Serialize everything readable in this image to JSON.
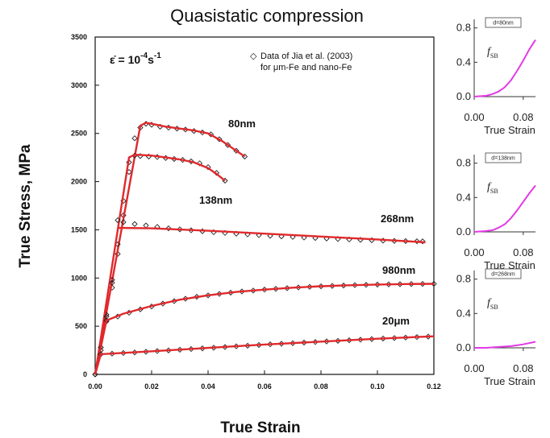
{
  "chart_data": [
    {
      "type": "line",
      "title": "Quasistatic compression",
      "xlabel": "True Strain",
      "ylabel": "True Stress, MPa",
      "xlim": [
        0,
        0.12
      ],
      "ylim": [
        0,
        3500
      ],
      "x_ticks": [
        "0.00",
        "0.02",
        "0.04",
        "0.06",
        "0.08",
        "0.10",
        "0.12"
      ],
      "y_ticks": [
        "0",
        "500",
        "1000",
        "1500",
        "2000",
        "2500",
        "3000",
        "3500"
      ],
      "strain_rate_label": {
        "base": "ε̇ = 10",
        "exp": "-4",
        "unit": "s",
        "unit_exp": "-1"
      },
      "legend": {
        "marker": "◇",
        "line1": "Data of Jia et al. (2003)",
        "line2": "for μm-Fe and nano-Fe",
        "placement": "top-right"
      },
      "series": [
        {
          "name": "80nm",
          "model_color": "#e0292c",
          "model": [
            [
              0,
              0
            ],
            [
              0.016,
              2580
            ],
            [
              0.018,
              2610
            ],
            [
              0.02,
              2600
            ],
            [
              0.025,
              2570
            ],
            [
              0.03,
              2550
            ],
            [
              0.035,
              2530
            ],
            [
              0.04,
              2500
            ],
            [
              0.045,
              2420
            ],
            [
              0.05,
              2320
            ],
            [
              0.053,
              2260
            ]
          ],
          "data": [
            [
              0,
              0
            ],
            [
              0.002,
              250
            ],
            [
              0.004,
              550
            ],
            [
              0.006,
              900
            ],
            [
              0.008,
              1250
            ],
            [
              0.01,
              1650
            ],
            [
              0.012,
              2100
            ],
            [
              0.014,
              2450
            ],
            [
              0.016,
              2560
            ],
            [
              0.018,
              2600
            ],
            [
              0.02,
              2590
            ],
            [
              0.023,
              2570
            ],
            [
              0.026,
              2560
            ],
            [
              0.029,
              2550
            ],
            [
              0.032,
              2540
            ],
            [
              0.035,
              2525
            ],
            [
              0.038,
              2510
            ],
            [
              0.041,
              2490
            ],
            [
              0.044,
              2440
            ],
            [
              0.047,
              2380
            ],
            [
              0.05,
              2320
            ],
            [
              0.053,
              2260
            ]
          ]
        },
        {
          "name": "138nm",
          "model_color": "#e0292c",
          "model": [
            [
              0,
              0
            ],
            [
              0.012,
              2250
            ],
            [
              0.014,
              2280
            ],
            [
              0.02,
              2270
            ],
            [
              0.025,
              2250
            ],
            [
              0.03,
              2230
            ],
            [
              0.035,
              2200
            ],
            [
              0.04,
              2140
            ],
            [
              0.043,
              2080
            ],
            [
              0.046,
              2010
            ]
          ],
          "data": [
            [
              0,
              0
            ],
            [
              0.002,
              280
            ],
            [
              0.004,
              620
            ],
            [
              0.006,
              980
            ],
            [
              0.008,
              1350
            ],
            [
              0.01,
              1800
            ],
            [
              0.012,
              2200
            ],
            [
              0.014,
              2270
            ],
            [
              0.016,
              2265
            ],
            [
              0.019,
              2260
            ],
            [
              0.022,
              2255
            ],
            [
              0.025,
              2245
            ],
            [
              0.028,
              2235
            ],
            [
              0.031,
              2225
            ],
            [
              0.034,
              2210
            ],
            [
              0.037,
              2190
            ],
            [
              0.04,
              2150
            ],
            [
              0.043,
              2090
            ],
            [
              0.046,
              2010
            ]
          ]
        },
        {
          "name": "268nm",
          "model_color": "#e0292c",
          "model": [
            [
              0.008,
              1520
            ],
            [
              0.02,
              1515
            ],
            [
              0.04,
              1490
            ],
            [
              0.06,
              1460
            ],
            [
              0.08,
              1430
            ],
            [
              0.1,
              1400
            ],
            [
              0.117,
              1370
            ]
          ],
          "data": [
            [
              0,
              0
            ],
            [
              0.002,
              280
            ],
            [
              0.004,
              600
            ],
            [
              0.006,
              950
            ],
            [
              0.008,
              1600
            ],
            [
              0.01,
              1580
            ],
            [
              0.014,
              1560
            ],
            [
              0.018,
              1545
            ],
            [
              0.022,
              1530
            ],
            [
              0.026,
              1515
            ],
            [
              0.03,
              1505
            ],
            [
              0.034,
              1495
            ],
            [
              0.038,
              1485
            ],
            [
              0.042,
              1475
            ],
            [
              0.046,
              1468
            ],
            [
              0.05,
              1460
            ],
            [
              0.054,
              1452
            ],
            [
              0.058,
              1445
            ],
            [
              0.062,
              1438
            ],
            [
              0.066,
              1432
            ],
            [
              0.07,
              1426
            ],
            [
              0.074,
              1420
            ],
            [
              0.078,
              1415
            ],
            [
              0.082,
              1410
            ],
            [
              0.086,
              1405
            ],
            [
              0.09,
              1400
            ],
            [
              0.094,
              1396
            ],
            [
              0.098,
              1392
            ],
            [
              0.102,
              1388
            ],
            [
              0.106,
              1385
            ],
            [
              0.11,
              1383
            ],
            [
              0.114,
              1381
            ],
            [
              0.116,
              1380
            ]
          ]
        },
        {
          "name": "980nm",
          "model_color": "#e0292c",
          "model": [
            [
              0,
              0
            ],
            [
              0.004,
              560
            ],
            [
              0.01,
              630
            ],
            [
              0.02,
              710
            ],
            [
              0.03,
              775
            ],
            [
              0.04,
              820
            ],
            [
              0.05,
              855
            ],
            [
              0.06,
              880
            ],
            [
              0.07,
              900
            ],
            [
              0.08,
              915
            ],
            [
              0.09,
              925
            ],
            [
              0.1,
              932
            ],
            [
              0.11,
              937
            ],
            [
              0.12,
              940
            ]
          ],
          "data": [
            [
              0.004,
              560
            ],
            [
              0.008,
              600
            ],
            [
              0.012,
              640
            ],
            [
              0.016,
              675
            ],
            [
              0.02,
              705
            ],
            [
              0.024,
              735
            ],
            [
              0.028,
              760
            ],
            [
              0.032,
              785
            ],
            [
              0.036,
              805
            ],
            [
              0.04,
              820
            ],
            [
              0.044,
              835
            ],
            [
              0.048,
              848
            ],
            [
              0.052,
              860
            ],
            [
              0.056,
              870
            ],
            [
              0.06,
              880
            ],
            [
              0.064,
              888
            ],
            [
              0.068,
              895
            ],
            [
              0.072,
              902
            ],
            [
              0.076,
              908
            ],
            [
              0.08,
              914
            ],
            [
              0.084,
              918
            ],
            [
              0.088,
              922
            ],
            [
              0.092,
              926
            ],
            [
              0.096,
              929
            ],
            [
              0.1,
              932
            ],
            [
              0.104,
              934
            ],
            [
              0.108,
              936
            ],
            [
              0.112,
              938
            ],
            [
              0.116,
              939
            ],
            [
              0.12,
              940
            ]
          ]
        },
        {
          "name": "20μm",
          "model_color": "#e0292c",
          "model": [
            [
              0,
              0
            ],
            [
              0.002,
              210
            ],
            [
              0.02,
              240
            ],
            [
              0.04,
              275
            ],
            [
              0.06,
              310
            ],
            [
              0.08,
              340
            ],
            [
              0.1,
              370
            ],
            [
              0.12,
              395
            ]
          ],
          "data": [
            [
              0.002,
              210
            ],
            [
              0.006,
              215
            ],
            [
              0.01,
              222
            ],
            [
              0.014,
              228
            ],
            [
              0.018,
              235
            ],
            [
              0.022,
              242
            ],
            [
              0.026,
              249
            ],
            [
              0.03,
              256
            ],
            [
              0.034,
              263
            ],
            [
              0.038,
              270
            ],
            [
              0.042,
              277
            ],
            [
              0.046,
              284
            ],
            [
              0.05,
              291
            ],
            [
              0.054,
              298
            ],
            [
              0.058,
              305
            ],
            [
              0.062,
              312
            ],
            [
              0.066,
              318
            ],
            [
              0.07,
              324
            ],
            [
              0.074,
              330
            ],
            [
              0.078,
              336
            ],
            [
              0.082,
              342
            ],
            [
              0.086,
              348
            ],
            [
              0.09,
              354
            ],
            [
              0.094,
              360
            ],
            [
              0.098,
              366
            ],
            [
              0.102,
              372
            ],
            [
              0.106,
              377
            ],
            [
              0.11,
              382
            ],
            [
              0.114,
              387
            ],
            [
              0.118,
              392
            ]
          ]
        }
      ]
    },
    {
      "type": "line",
      "xlabel": "True Strain",
      "ylabel_symbol": "f",
      "ylabel_sub": "SB",
      "box_label": "d=80nm",
      "x_ticks": [
        "0.00",
        "0.08"
      ],
      "y_ticks": [
        "0.0",
        "0.4",
        "0.8"
      ],
      "xlim": [
        0,
        0.1
      ],
      "ylim": [
        0,
        0.9
      ],
      "color": "#e23ae6",
      "values": [
        [
          0,
          0
        ],
        [
          0.02,
          0.01
        ],
        [
          0.03,
          0.03
        ],
        [
          0.04,
          0.06
        ],
        [
          0.05,
          0.11
        ],
        [
          0.06,
          0.19
        ],
        [
          0.07,
          0.3
        ],
        [
          0.08,
          0.42
        ],
        [
          0.09,
          0.55
        ],
        [
          0.1,
          0.66
        ]
      ]
    },
    {
      "type": "line",
      "xlabel": "True Strain",
      "ylabel_symbol": "f",
      "ylabel_sub": "SB",
      "box_label": "d=138nm",
      "x_ticks": [
        "0.00",
        "0.08"
      ],
      "y_ticks": [
        "0.0",
        "0.4",
        "0.8"
      ],
      "xlim": [
        0,
        0.1
      ],
      "ylim": [
        0,
        0.9
      ],
      "color": "#e23ae6",
      "values": [
        [
          0,
          0
        ],
        [
          0.02,
          0.01
        ],
        [
          0.03,
          0.02
        ],
        [
          0.04,
          0.05
        ],
        [
          0.05,
          0.09
        ],
        [
          0.06,
          0.16
        ],
        [
          0.07,
          0.25
        ],
        [
          0.08,
          0.35
        ],
        [
          0.09,
          0.45
        ],
        [
          0.1,
          0.54
        ]
      ]
    },
    {
      "type": "line",
      "xlabel": "True Strain",
      "ylabel_symbol": "f",
      "ylabel_sub": "SB",
      "box_label": "d=268nm",
      "x_ticks": [
        "0.00",
        "0.08"
      ],
      "y_ticks": [
        "0.0",
        "0.4",
        "0.8"
      ],
      "xlim": [
        0,
        0.1
      ],
      "ylim": [
        0,
        0.9
      ],
      "color": "#e23ae6",
      "values": [
        [
          0,
          0
        ],
        [
          0.02,
          0.0
        ],
        [
          0.04,
          0.01
        ],
        [
          0.06,
          0.02
        ],
        [
          0.08,
          0.04
        ],
        [
          0.1,
          0.07
        ]
      ]
    }
  ]
}
